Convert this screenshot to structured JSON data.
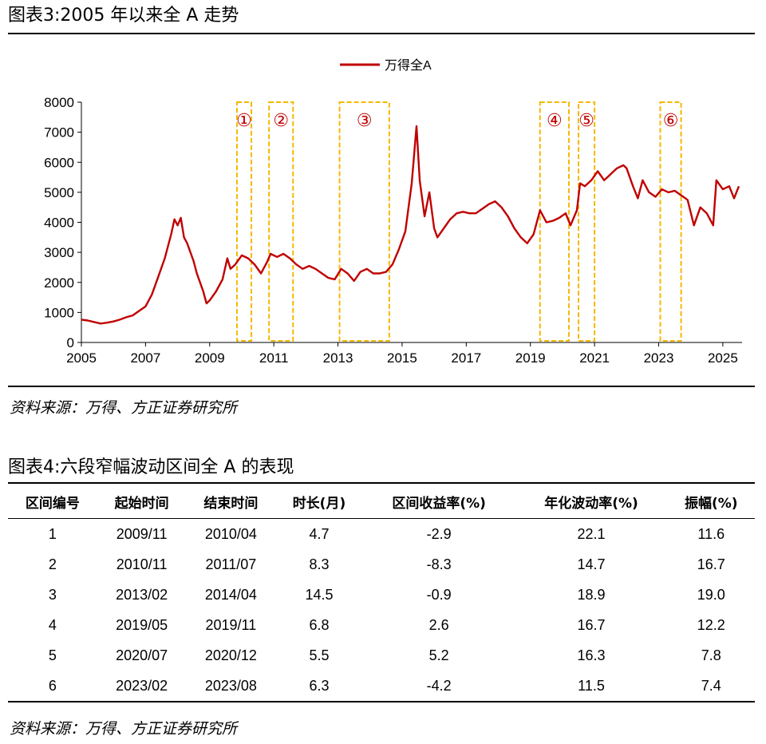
{
  "figure3": {
    "title": "图表3:2005 年以来全 A 走势",
    "source": "资料来源：万得、方正证券研究所"
  },
  "figure4": {
    "title": "图表4:六段窄幅波动区间全 A 的表现",
    "source": "资料来源：万得、方正证券研究所",
    "headers": [
      "区间编号",
      "起始时间",
      "结束时间",
      "时长(月)",
      "区间收益率(%)",
      "年化波动率(%)",
      "振幅(%)"
    ],
    "rows": [
      [
        "1",
        "2009/11",
        "2010/04",
        "4.7",
        "-2.9",
        "22.1",
        "11.6"
      ],
      [
        "2",
        "2010/11",
        "2011/07",
        "8.3",
        "-8.3",
        "14.7",
        "16.7"
      ],
      [
        "3",
        "2013/02",
        "2014/04",
        "14.5",
        "-0.9",
        "18.9",
        "19.0"
      ],
      [
        "4",
        "2019/05",
        "2019/11",
        "6.8",
        "2.6",
        "16.7",
        "12.2"
      ],
      [
        "5",
        "2020/07",
        "2020/12",
        "5.5",
        "5.2",
        "16.3",
        "7.8"
      ],
      [
        "6",
        "2023/02",
        "2023/08",
        "6.3",
        "-4.2",
        "11.5",
        "7.4"
      ]
    ]
  },
  "chart_data": {
    "type": "line",
    "legend_position": "top-center",
    "series": [
      {
        "name": "万得全A",
        "color": "#C00000",
        "points": [
          [
            2005.0,
            760
          ],
          [
            2005.2,
            730
          ],
          [
            2005.4,
            680
          ],
          [
            2005.6,
            630
          ],
          [
            2005.8,
            660
          ],
          [
            2006.0,
            700
          ],
          [
            2006.2,
            760
          ],
          [
            2006.4,
            840
          ],
          [
            2006.6,
            900
          ],
          [
            2006.8,
            1050
          ],
          [
            2007.0,
            1200
          ],
          [
            2007.2,
            1600
          ],
          [
            2007.4,
            2200
          ],
          [
            2007.6,
            2800
          ],
          [
            2007.8,
            3600
          ],
          [
            2007.9,
            4100
          ],
          [
            2008.0,
            3900
          ],
          [
            2008.1,
            4150
          ],
          [
            2008.2,
            3500
          ],
          [
            2008.3,
            3300
          ],
          [
            2008.5,
            2700
          ],
          [
            2008.6,
            2300
          ],
          [
            2008.8,
            1700
          ],
          [
            2008.9,
            1300
          ],
          [
            2009.0,
            1400
          ],
          [
            2009.2,
            1700
          ],
          [
            2009.4,
            2100
          ],
          [
            2009.55,
            2800
          ],
          [
            2009.65,
            2450
          ],
          [
            2009.8,
            2600
          ],
          [
            2010.0,
            2900
          ],
          [
            2010.2,
            2800
          ],
          [
            2010.4,
            2600
          ],
          [
            2010.6,
            2300
          ],
          [
            2010.8,
            2700
          ],
          [
            2010.9,
            2950
          ],
          [
            2011.1,
            2850
          ],
          [
            2011.3,
            2950
          ],
          [
            2011.5,
            2800
          ],
          [
            2011.7,
            2600
          ],
          [
            2011.9,
            2450
          ],
          [
            2012.1,
            2550
          ],
          [
            2012.3,
            2450
          ],
          [
            2012.5,
            2300
          ],
          [
            2012.7,
            2150
          ],
          [
            2012.9,
            2100
          ],
          [
            2013.1,
            2450
          ],
          [
            2013.3,
            2300
          ],
          [
            2013.5,
            2050
          ],
          [
            2013.7,
            2350
          ],
          [
            2013.9,
            2450
          ],
          [
            2014.1,
            2300
          ],
          [
            2014.3,
            2300
          ],
          [
            2014.5,
            2350
          ],
          [
            2014.7,
            2600
          ],
          [
            2014.9,
            3100
          ],
          [
            2015.1,
            3700
          ],
          [
            2015.3,
            5300
          ],
          [
            2015.45,
            7200
          ],
          [
            2015.55,
            5400
          ],
          [
            2015.7,
            4200
          ],
          [
            2015.85,
            5000
          ],
          [
            2016.0,
            3800
          ],
          [
            2016.1,
            3500
          ],
          [
            2016.3,
            3800
          ],
          [
            2016.5,
            4100
          ],
          [
            2016.7,
            4300
          ],
          [
            2016.9,
            4350
          ],
          [
            2017.1,
            4300
          ],
          [
            2017.3,
            4300
          ],
          [
            2017.5,
            4450
          ],
          [
            2017.7,
            4600
          ],
          [
            2017.9,
            4700
          ],
          [
            2018.1,
            4500
          ],
          [
            2018.3,
            4200
          ],
          [
            2018.5,
            3800
          ],
          [
            2018.7,
            3500
          ],
          [
            2018.9,
            3300
          ],
          [
            2019.1,
            3600
          ],
          [
            2019.3,
            4400
          ],
          [
            2019.5,
            4000
          ],
          [
            2019.7,
            4050
          ],
          [
            2019.9,
            4150
          ],
          [
            2020.1,
            4300
          ],
          [
            2020.25,
            3900
          ],
          [
            2020.45,
            4400
          ],
          [
            2020.55,
            5300
          ],
          [
            2020.7,
            5200
          ],
          [
            2020.9,
            5400
          ],
          [
            2021.1,
            5700
          ],
          [
            2021.3,
            5400
          ],
          [
            2021.5,
            5600
          ],
          [
            2021.7,
            5800
          ],
          [
            2021.9,
            5900
          ],
          [
            2022.0,
            5800
          ],
          [
            2022.2,
            5200
          ],
          [
            2022.35,
            4800
          ],
          [
            2022.5,
            5400
          ],
          [
            2022.7,
            5000
          ],
          [
            2022.9,
            4850
          ],
          [
            2023.1,
            5100
          ],
          [
            2023.3,
            5000
          ],
          [
            2023.5,
            5050
          ],
          [
            2023.7,
            4900
          ],
          [
            2023.9,
            4750
          ],
          [
            2024.1,
            3900
          ],
          [
            2024.3,
            4500
          ],
          [
            2024.5,
            4300
          ],
          [
            2024.7,
            3900
          ],
          [
            2024.8,
            5400
          ],
          [
            2025.0,
            5100
          ],
          [
            2025.2,
            5200
          ],
          [
            2025.35,
            4800
          ],
          [
            2025.5,
            5200
          ]
        ]
      }
    ],
    "xlim": [
      2005,
      2025.6
    ],
    "ylim": [
      0,
      8000
    ],
    "x_ticks": [
      2005,
      2007,
      2009,
      2011,
      2013,
      2015,
      2017,
      2019,
      2021,
      2023,
      2025
    ],
    "y_ticks": [
      0,
      1000,
      2000,
      3000,
      4000,
      5000,
      6000,
      7000,
      8000
    ],
    "highlight_boxes": [
      {
        "label": "①",
        "x_start": 2009.85,
        "x_end": 2010.3
      },
      {
        "label": "②",
        "x_start": 2010.85,
        "x_end": 2011.6
      },
      {
        "label": "③",
        "x_start": 2013.05,
        "x_end": 2014.6
      },
      {
        "label": "④",
        "x_start": 2019.3,
        "x_end": 2020.2
      },
      {
        "label": "⑤",
        "x_start": 2020.5,
        "x_end": 2021.0
      },
      {
        "label": "⑥",
        "x_start": 2023.05,
        "x_end": 2023.7
      }
    ],
    "box_color": "#F5B800",
    "label_color": "#C00000"
  }
}
